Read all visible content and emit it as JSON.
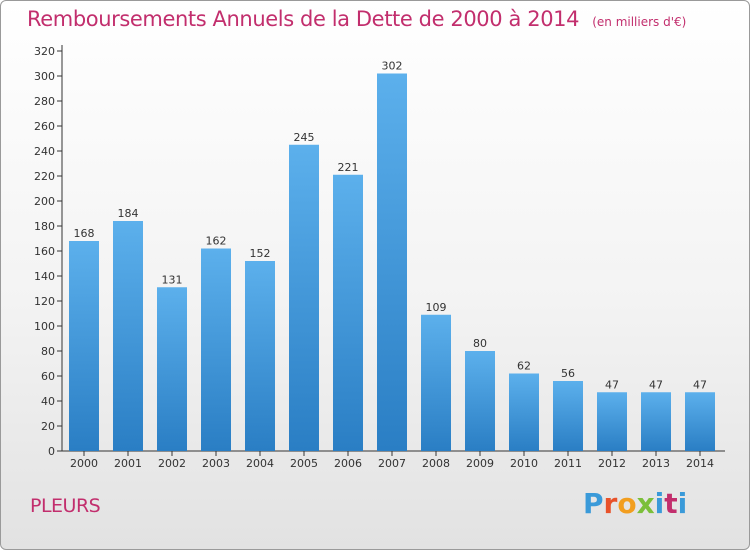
{
  "header": {
    "title": "Remboursements Annuels de la Dette de 2000 à 2014",
    "subtitle": "(en milliers d'€)"
  },
  "commune": "PLEURS",
  "logo": {
    "text": "Proxiti",
    "letters": [
      "P",
      "r",
      "o",
      "x",
      "i",
      "t",
      "i"
    ]
  },
  "colors": {
    "title": "#c22e6d",
    "bar_top": "#5cb0ec",
    "bar_bottom": "#2a7ec4",
    "axis": "#333333"
  },
  "chart_data": {
    "type": "bar",
    "title": "Remboursements Annuels de la Dette de 2000 à 2014",
    "subtitle": "(en milliers d'€)",
    "xlabel": "",
    "ylabel": "",
    "categories": [
      "2000",
      "2001",
      "2002",
      "2003",
      "2004",
      "2005",
      "2006",
      "2007",
      "2008",
      "2009",
      "2010",
      "2011",
      "2012",
      "2013",
      "2014"
    ],
    "values": [
      168,
      184,
      131,
      162,
      152,
      245,
      221,
      302,
      109,
      80,
      62,
      56,
      47,
      47,
      47
    ],
    "ylim": [
      0,
      320
    ],
    "yticks": [
      0,
      20,
      40,
      60,
      80,
      100,
      120,
      140,
      160,
      180,
      200,
      220,
      240,
      260,
      280,
      300,
      320
    ],
    "grid": false,
    "legend": "none"
  }
}
